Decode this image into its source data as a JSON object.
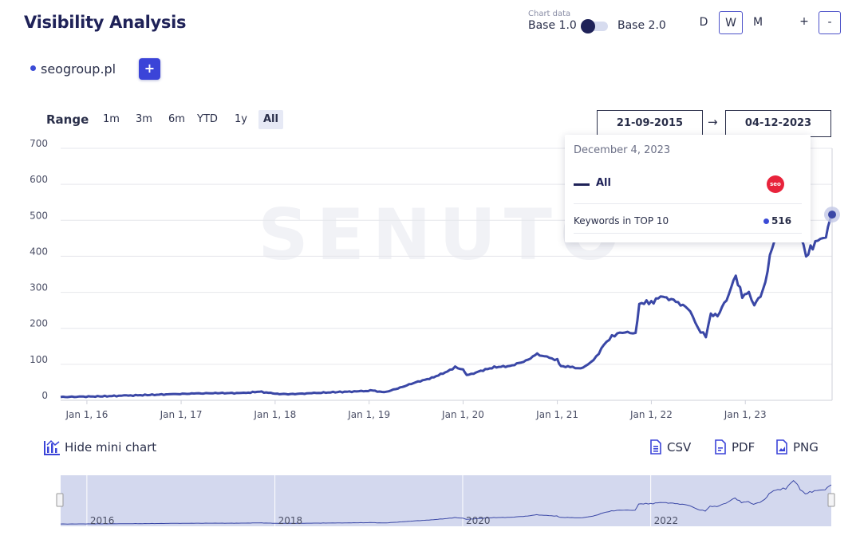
{
  "page": {
    "title": "Visibility Analysis"
  },
  "chart_settings": {
    "chart_data_label": "Chart data",
    "base1_label": "Base 1.0",
    "base2_label": "Base 2.0",
    "periods": [
      "D",
      "W",
      "M"
    ],
    "active_period": "W",
    "zoom_in": "+",
    "zoom_out": "-"
  },
  "domain": {
    "name": "seogroup.pl",
    "add_button": "+"
  },
  "range": {
    "label": "Range",
    "buttons": [
      "1m",
      "3m",
      "6m",
      "YTD",
      "1y",
      "All"
    ],
    "active": "All",
    "from": "21-09-2015",
    "arrow": "→",
    "to": "04-12-2023"
  },
  "tooltip": {
    "date": "December 4, 2023",
    "series_label": "All",
    "logo_text": "seo",
    "metric_label": "Keywords in TOP 10",
    "metric_value": "516"
  },
  "watermark": "SENUTO",
  "mini_chart": {
    "toggle_label": "Hide mini chart",
    "year_labels": [
      "2016",
      "2018",
      "2020",
      "2022"
    ]
  },
  "exports": [
    "CSV",
    "PDF",
    "PNG"
  ],
  "colors": {
    "line": "#3a47a6",
    "accent": "#3b44d8",
    "navy": "#1f2258",
    "mini_fill": "#d3d8ee"
  },
  "chart_data": {
    "type": "line",
    "title": "",
    "xlabel": "",
    "ylabel": "",
    "x_ticks": [
      "Jan 1, 16",
      "Jan 1, 17",
      "Jan 1, 18",
      "Jan 1, 19",
      "Jan 1, 20",
      "Jan 1, 21",
      "Jan 1, 22",
      "Jan 1, 23"
    ],
    "y_ticks": [
      0,
      100,
      200,
      300,
      400,
      500,
      600,
      700
    ],
    "ylim": [
      0,
      700
    ],
    "xlim": [
      "2015-09-21",
      "2023-12-04"
    ],
    "grid": true,
    "series": [
      {
        "name": "All",
        "points": [
          [
            "2015-09-21",
            9
          ],
          [
            "2015-12-01",
            10
          ],
          [
            "2016-03-01",
            11
          ],
          [
            "2016-06-01",
            13
          ],
          [
            "2016-09-01",
            15
          ],
          [
            "2016-12-01",
            17
          ],
          [
            "2017-03-01",
            19
          ],
          [
            "2017-06-01",
            20
          ],
          [
            "2017-09-01",
            20
          ],
          [
            "2017-11-01",
            24
          ],
          [
            "2017-12-15",
            20
          ],
          [
            "2018-01-01",
            18
          ],
          [
            "2018-03-01",
            17
          ],
          [
            "2018-06-01",
            20
          ],
          [
            "2018-09-01",
            23
          ],
          [
            "2018-12-01",
            25
          ],
          [
            "2019-01-15",
            27
          ],
          [
            "2019-03-01",
            22
          ],
          [
            "2019-05-01",
            35
          ],
          [
            "2019-07-01",
            50
          ],
          [
            "2019-09-01",
            62
          ],
          [
            "2019-11-01",
            80
          ],
          [
            "2019-12-01",
            92
          ],
          [
            "2020-01-01",
            85
          ],
          [
            "2020-01-15",
            70
          ],
          [
            "2020-02-01",
            72
          ],
          [
            "2020-03-01",
            80
          ],
          [
            "2020-05-01",
            92
          ],
          [
            "2020-07-01",
            95
          ],
          [
            "2020-09-01",
            110
          ],
          [
            "2020-10-15",
            128
          ],
          [
            "2020-12-01",
            118
          ],
          [
            "2021-01-01",
            112
          ],
          [
            "2021-01-15",
            95
          ],
          [
            "2021-03-01",
            92
          ],
          [
            "2021-04-01",
            88
          ],
          [
            "2021-05-01",
            100
          ],
          [
            "2021-06-01",
            120
          ],
          [
            "2021-07-01",
            155
          ],
          [
            "2021-08-01",
            178
          ],
          [
            "2021-09-01",
            188
          ],
          [
            "2021-10-01",
            190
          ],
          [
            "2021-11-01",
            185
          ],
          [
            "2021-11-15",
            270
          ],
          [
            "2022-01-01",
            272
          ],
          [
            "2022-02-15",
            290
          ],
          [
            "2022-03-01",
            285
          ],
          [
            "2022-04-15",
            272
          ],
          [
            "2022-06-01",
            250
          ],
          [
            "2022-07-01",
            200
          ],
          [
            "2022-08-01",
            178
          ],
          [
            "2022-08-20",
            240
          ],
          [
            "2022-09-15",
            235
          ],
          [
            "2022-10-20",
            280
          ],
          [
            "2022-11-25",
            345
          ],
          [
            "2022-12-20",
            290
          ],
          [
            "2023-01-15",
            300
          ],
          [
            "2023-02-05",
            268
          ],
          [
            "2023-03-01",
            290
          ],
          [
            "2023-03-20",
            330
          ],
          [
            "2023-04-15",
            430
          ],
          [
            "2023-05-10",
            455
          ],
          [
            "2023-06-10",
            470
          ],
          [
            "2023-07-10",
            575
          ],
          [
            "2023-07-25",
            530
          ],
          [
            "2023-08-05",
            460
          ],
          [
            "2023-08-25",
            400
          ],
          [
            "2023-09-20",
            430
          ],
          [
            "2023-10-20",
            450
          ],
          [
            "2023-11-10",
            460
          ],
          [
            "2023-12-04",
            516
          ]
        ]
      }
    ]
  }
}
